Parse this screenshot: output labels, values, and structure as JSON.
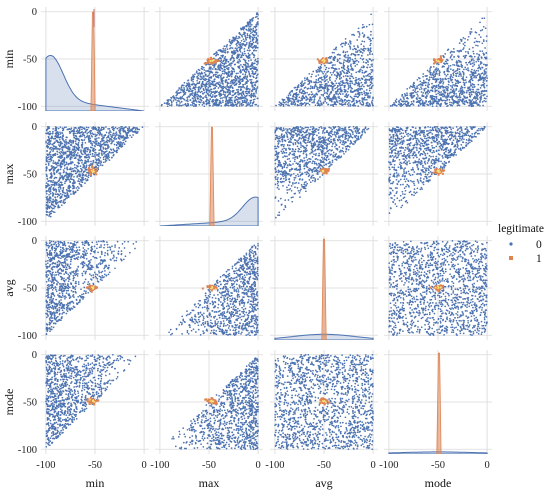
{
  "chart_data": {
    "type": "scatter",
    "subtype": "pairplot",
    "variables": [
      "min",
      "max",
      "avg",
      "mode"
    ],
    "axis_range": [
      -105,
      5
    ],
    "ticks": [
      -100,
      -50,
      0
    ],
    "tick_labels": [
      "-100",
      "-50",
      "0"
    ],
    "grid": true,
    "legend": {
      "title": "legitimate",
      "placement": "right",
      "entries": [
        {
          "label": "0",
          "color": "#4c72b0",
          "marker": "dot"
        },
        {
          "label": "1",
          "color": "#dd8452",
          "marker": "square"
        }
      ]
    },
    "series": [
      {
        "name": "0",
        "color": "#4c72b0",
        "description_of_distribution": "dense uniform cloud over -100 to 0",
        "constraints": {
          "min<=avg<=max": true,
          "min<=mode<=max": true
        },
        "diag_kde": {
          "min": "peak near -95, decaying right",
          "max": "rising to peak near -3",
          "avg": "broad flat hump centered near -50",
          "mode": "very flat broad hump"
        }
      },
      {
        "name": "1",
        "color": "#dd8452",
        "cluster_center": {
          "min": -52,
          "max": -47,
          "avg": -50,
          "mode": -49
        },
        "cluster_spread": 2.5,
        "diag_spike_heights": {
          "min": 0.95,
          "max": 0.95,
          "avg": 0.97,
          "mode": 0.97
        }
      }
    ]
  }
}
